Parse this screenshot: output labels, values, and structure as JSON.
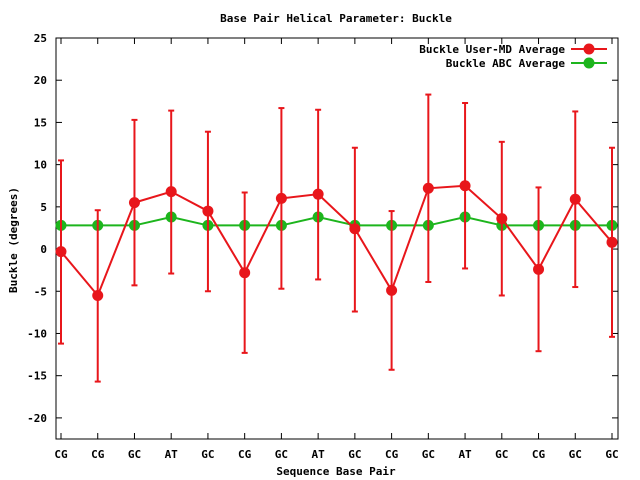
{
  "chart_data": {
    "type": "line",
    "title": "Base Pair Helical Parameter: Buckle",
    "xlabel": "Sequence Base Pair",
    "ylabel": "Buckle (degrees)",
    "categories": [
      "CG",
      "CG",
      "GC",
      "AT",
      "GC",
      "CG",
      "GC",
      "AT",
      "GC",
      "CG",
      "GC",
      "AT",
      "GC",
      "CG",
      "GC",
      "GC"
    ],
    "ylim": [
      -22.5,
      25
    ],
    "yticks": [
      -20,
      -15,
      -10,
      -5,
      0,
      5,
      10,
      15,
      20,
      25
    ],
    "grid": false,
    "legend_position": "top-right",
    "series": [
      {
        "name": "Buckle User-MD Average",
        "color": "#e8161b",
        "values": [
          -0.3,
          -5.5,
          5.5,
          6.8,
          4.5,
          -2.8,
          6.0,
          6.5,
          2.4,
          -4.9,
          7.2,
          7.5,
          3.6,
          -2.4,
          5.9,
          0.8
        ],
        "err_low": [
          -11.2,
          -15.7,
          -4.3,
          -2.9,
          -5.0,
          -12.3,
          -4.7,
          -3.6,
          -7.4,
          -14.3,
          -3.9,
          -2.3,
          -5.5,
          -12.1,
          -4.5,
          -10.4
        ],
        "err_high": [
          10.5,
          4.6,
          15.3,
          16.4,
          13.9,
          6.7,
          16.7,
          16.5,
          12.0,
          4.5,
          18.3,
          17.3,
          12.7,
          7.3,
          16.3,
          12.0
        ]
      },
      {
        "name": "Buckle ABC Average",
        "color": "#1db51d",
        "values": [
          2.8,
          2.8,
          2.8,
          3.8,
          2.8,
          2.8,
          2.8,
          3.8,
          2.8,
          2.8,
          2.8,
          3.8,
          2.8,
          2.8,
          2.8,
          2.8
        ]
      }
    ]
  }
}
